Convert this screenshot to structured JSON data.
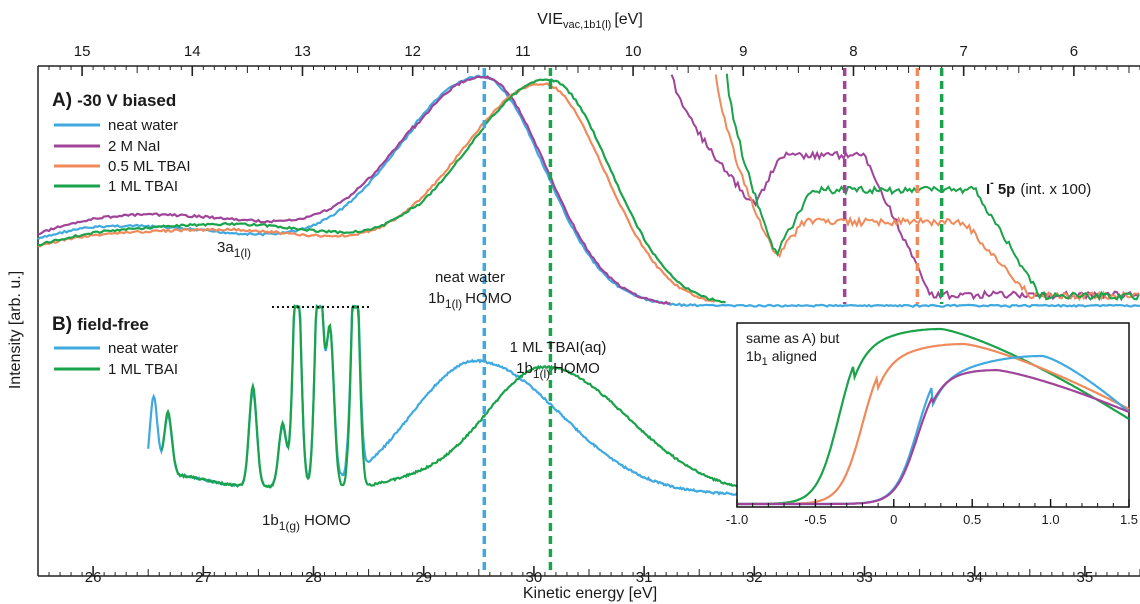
{
  "colors": {
    "neat_water": "#3fa9e0",
    "nai": "#a0449a",
    "tbai_05": "#f08a5b",
    "tbai_1": "#1aa34a"
  },
  "axes": {
    "top_title": "VIE",
    "top_title_sub": "vac,1b1(l)",
    "top_title_unit": "[eV]",
    "bottom_title": "Kinetic energy [eV]",
    "y_title": "Intensity [arb. u.]"
  },
  "panel_a": {
    "title_letter": "A)",
    "title_text": "-30 V biased",
    "legend": [
      "neat water",
      "2 M NaI",
      "0.5 ML TBAI",
      "1 ML TBAI"
    ],
    "label_3a": "3a",
    "label_3a_sub": "1(l)",
    "label_i5p": "I",
    "label_i5p_sup": "-",
    "label_i5p_bold": "5p",
    "label_i5p_tail": "(int. x 100)"
  },
  "panel_b": {
    "title_letter": "B)",
    "title_text": "field-free",
    "legend": [
      "neat water",
      "1 ML TBAI"
    ],
    "label_gas": "1b",
    "label_gas_sub": "1(g)",
    "label_gas_tail": "HOMO"
  },
  "annotations": {
    "neat_line1": "neat water",
    "neat_line2": "1b",
    "neat_line2_sub": "1(l)",
    "neat_line2_tail": "HOMO",
    "tbai_line1": "1 ML TBAI(aq)",
    "tbai_line2": "1b",
    "tbai_line2_sub": "1(l)",
    "tbai_line2_tail": "HOMO"
  },
  "inset": {
    "text_line1": "same as A) but",
    "text_line2": "1b",
    "text_line2_sub": "1",
    "text_line2_tail": "aligned"
  },
  "chart_data": {
    "type": "line",
    "x_axis": {
      "label": "Kinetic energy [eV]",
      "range": [
        25.5,
        35.5
      ],
      "ticks": [
        26,
        27,
        28,
        29,
        30,
        31,
        32,
        33,
        34,
        35
      ]
    },
    "x2_axis": {
      "label": "VIE vac,1b1(l) [eV]",
      "range": [
        15.4,
        5.4
      ],
      "ticks": [
        15,
        14,
        13,
        12,
        11,
        10,
        9,
        8,
        7,
        6
      ]
    },
    "y_axis": {
      "label": "Intensity [arb. u.]",
      "ticks": "none"
    },
    "vertical_lines_vie": [
      {
        "series": "neat water",
        "vie": 11.35
      },
      {
        "series": "1 ML TBAI",
        "vie": 10.75
      },
      {
        "series": "2 M NaI",
        "vie": 8.08
      },
      {
        "series": "0.5 ML TBAI",
        "vie": 7.42
      },
      {
        "series": "1 ML TBAI",
        "vie": 7.2
      }
    ],
    "panel_a": {
      "series": [
        {
          "name": "neat water",
          "peaks_vie": [
            {
              "label": "3a1(l)",
              "vie": 13.8
            },
            {
              "label": "1b1(l) HOMO",
              "vie": 11.35
            }
          ]
        },
        {
          "name": "2 M NaI",
          "peaks_vie": [
            {
              "label": "1b1(l) HOMO",
              "vie": 11.35
            },
            {
              "label": "I- 5p",
              "vie": 8.08
            }
          ]
        },
        {
          "name": "0.5 ML TBAI",
          "peaks_vie": [
            {
              "label": "1b1(l) HOMO",
              "vie": 10.8
            },
            {
              "label": "I- 5p",
              "vie": 7.42
            }
          ]
        },
        {
          "name": "1 ML TBAI",
          "peaks_vie": [
            {
              "label": "1b1(l) HOMO",
              "vie": 10.75
            },
            {
              "label": "I- 5p",
              "vie": 7.2
            }
          ]
        }
      ]
    },
    "panel_b": {
      "series": [
        {
          "name": "neat water",
          "peak_ke": 29.5
        },
        {
          "name": "1 ML TBAI",
          "peak_ke": 30.1
        }
      ]
    },
    "inset": {
      "x_range": [
        -1.0,
        1.5
      ],
      "ticks": [
        "-1.0",
        "-0.5",
        "0",
        "0.5",
        "1.0",
        "1.5"
      ],
      "series_onsets": [
        {
          "name": "1 ML TBAI",
          "onset": -0.45,
          "peak": 0.3
        },
        {
          "name": "0.5 ML TBAI",
          "onset": -0.3,
          "peak": 0.45
        },
        {
          "name": "neat water",
          "onset": 0.05,
          "peak": 0.95
        },
        {
          "name": "2 M NaI",
          "onset": 0.05,
          "peak": 0.65
        }
      ]
    }
  }
}
